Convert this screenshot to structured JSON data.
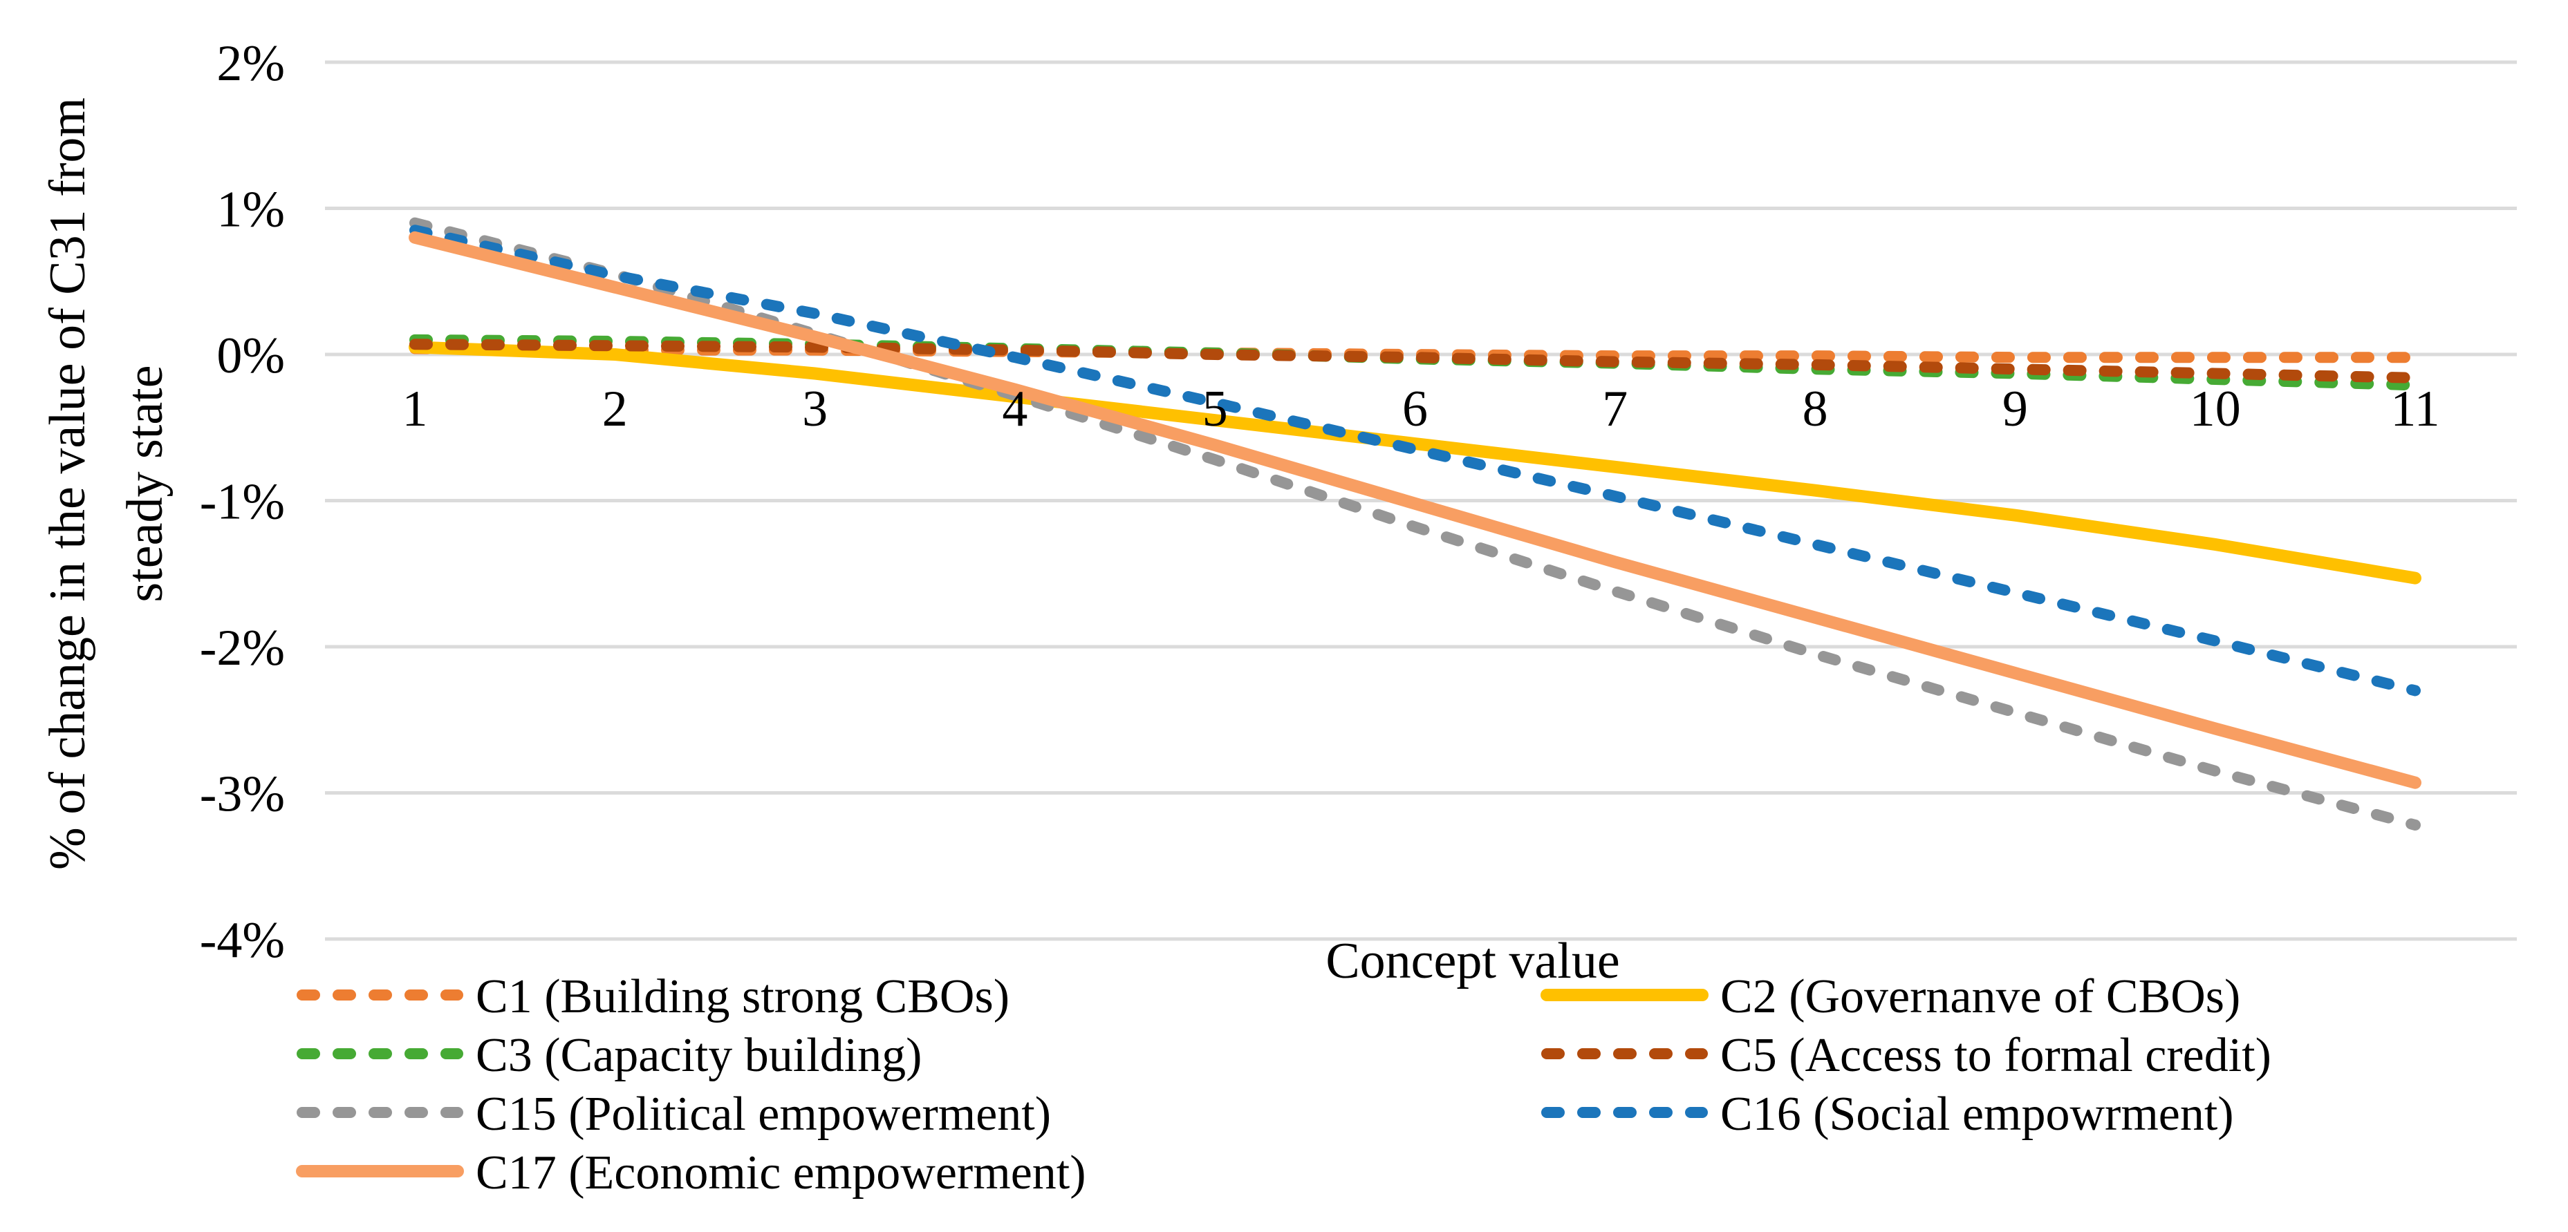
{
  "figure": {
    "background_color": "#FFFFFF",
    "gridline_color": "#DBDBDB",
    "text_color": "#000000"
  },
  "chart_data": {
    "type": "line",
    "title": "",
    "xlabel": "Concept value",
    "ylabel": "% of change in the value of C31 from steady state",
    "ylabel_lines": [
      "% of change in the value of C31 from",
      "steady state"
    ],
    "x": [
      1,
      2,
      3,
      4,
      5,
      6,
      7,
      8,
      9,
      10,
      11
    ],
    "x_tick_labels": [
      "1",
      "2",
      "3",
      "4",
      "5",
      "6",
      "7",
      "8",
      "9",
      "10",
      "11"
    ],
    "y_ticks": [
      {
        "label": "2%",
        "value": 2
      },
      {
        "label": "1%",
        "value": 1
      },
      {
        "label": "0%",
        "value": 0
      },
      {
        "label": "-1%",
        "value": -1
      },
      {
        "label": "-2%",
        "value": -2
      },
      {
        "label": "-3%",
        "value": -3
      },
      {
        "label": "-4%",
        "value": -4
      }
    ],
    "ylim": [
      -4,
      2
    ],
    "grid": true,
    "legend_position": "bottom",
    "series": [
      {
        "name": "C1 (Building strong CBOs)",
        "color": "#ED7D31",
        "style": "dashed",
        "values": [
          0.04,
          0.03,
          0.03,
          0.02,
          0.01,
          0.0,
          -0.01,
          -0.01,
          -0.02,
          -0.02,
          -0.02
        ]
      },
      {
        "name": "C2 (Governanve of CBOs)",
        "color": "#FFC000",
        "style": "solid",
        "values": [
          0.05,
          0.0,
          -0.13,
          -0.29,
          -0.45,
          -0.61,
          -0.77,
          -0.93,
          -1.1,
          -1.3,
          -1.53
        ]
      },
      {
        "name": "C3 (Capacity building)",
        "color": "#46AA34",
        "style": "dashed",
        "values": [
          0.1,
          0.09,
          0.07,
          0.04,
          0.01,
          -0.03,
          -0.06,
          -0.1,
          -0.13,
          -0.17,
          -0.21
        ]
      },
      {
        "name": "C5 (Access to formal credit)",
        "color": "#B24A0C",
        "style": "dashed",
        "values": [
          0.07,
          0.06,
          0.05,
          0.03,
          0.0,
          -0.02,
          -0.05,
          -0.07,
          -0.1,
          -0.13,
          -0.16
        ]
      },
      {
        "name": "C15 (Political empowerment)",
        "color": "#969696",
        "style": "dashed",
        "values": [
          0.9,
          0.55,
          0.14,
          -0.28,
          -0.72,
          -1.18,
          -1.62,
          -2.05,
          -2.45,
          -2.85,
          -3.22
        ]
      },
      {
        "name": "C16 (Social empowrment)",
        "color": "#1B75BB",
        "style": "dashed",
        "values": [
          0.85,
          0.54,
          0.28,
          -0.02,
          -0.33,
          -0.65,
          -0.97,
          -1.3,
          -1.63,
          -1.96,
          -2.3
        ]
      },
      {
        "name": "C17 (Economic empowerment)",
        "color": "#F89E62",
        "style": "solid",
        "values": [
          0.8,
          0.46,
          0.12,
          -0.24,
          -0.62,
          -1.02,
          -1.42,
          -1.8,
          -2.18,
          -2.56,
          -2.93
        ]
      }
    ],
    "legend_layout": {
      "left_column": [
        "C1 (Building strong CBOs)",
        "C3 (Capacity building)",
        "C15 (Political empowerment)",
        "C17 (Economic empowerment)"
      ],
      "right_column": [
        "C2 (Governanve of CBOs)",
        "C5 (Access to formal credit)",
        "C16 (Social empowrment)"
      ]
    }
  }
}
